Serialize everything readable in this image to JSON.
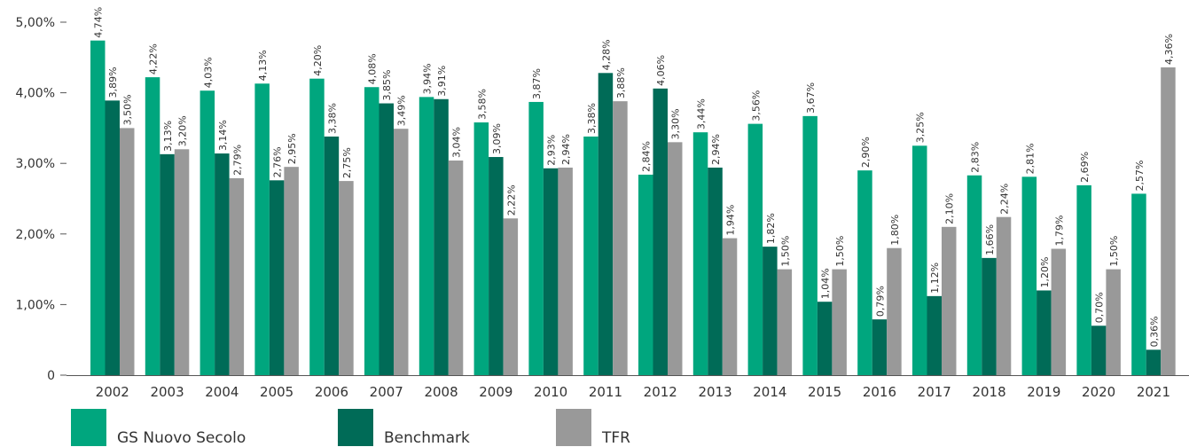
{
  "chart_data": {
    "type": "bar",
    "categories": [
      "2002",
      "2003",
      "2004",
      "2005",
      "2006",
      "2007",
      "2008",
      "2009",
      "2010",
      "2011",
      "2012",
      "2013",
      "2014",
      "2015",
      "2016",
      "2017",
      "2018",
      "2019",
      "2020",
      "2021"
    ],
    "series": [
      {
        "name": "GS Nuovo Secolo",
        "color": "#00A67E",
        "values": [
          4.74,
          4.22,
          4.03,
          4.13,
          4.2,
          4.08,
          3.94,
          3.58,
          3.87,
          3.38,
          2.84,
          3.44,
          3.56,
          3.67,
          2.9,
          3.25,
          2.83,
          2.81,
          2.69,
          2.57
        ]
      },
      {
        "name": "Benchmark",
        "color": "#006B57",
        "values": [
          3.89,
          3.13,
          3.14,
          2.76,
          3.38,
          3.85,
          3.91,
          3.09,
          2.93,
          4.28,
          4.06,
          2.94,
          1.82,
          1.04,
          0.79,
          1.12,
          1.66,
          1.2,
          0.7,
          0.36
        ]
      },
      {
        "name": "TFR",
        "color": "#999999",
        "values": [
          3.5,
          3.2,
          2.79,
          2.95,
          2.75,
          3.49,
          3.04,
          2.22,
          2.94,
          3.88,
          3.3,
          1.94,
          1.5,
          1.5,
          1.8,
          2.1,
          2.24,
          1.79,
          1.5,
          4.36
        ]
      }
    ],
    "data_labels": [
      [
        "4,74%",
        "4,22%",
        "4,03%",
        "4,13%",
        "4,20%",
        "4,08%",
        "3,94%",
        "3,58%",
        "3,87%",
        "3,38%",
        "2,84%",
        "3,44%",
        "3,56%",
        "3,67%",
        "2,90%",
        "3,25%",
        "2,83%",
        "2,81%",
        "2,69%",
        "2,57%"
      ],
      [
        "3,89%",
        "3,13%",
        "3,14%",
        "2,76%",
        "3,38%",
        "3,85%",
        "3,91%",
        "3,09%",
        "2,93%",
        "4,28%",
        "4,06%",
        "2,94%",
        "1,82%",
        "1,04%",
        "0,79%",
        "1,12%",
        "1,66%",
        "1,20%",
        "0,70%",
        "0,36%"
      ],
      [
        "3,50%",
        "3,20%",
        "2,79%",
        "2,95%",
        "2,75%",
        "3,49%",
        "3,04%",
        "2,22%",
        "2,94%",
        "3,88%",
        "3,30%",
        "1,94%",
        "1,50%",
        "1,50%",
        "1,80%",
        "2,10%",
        "2,24%",
        "1,79%",
        "1,50%",
        "4,36%"
      ]
    ],
    "y_ticks": [
      {
        "value": 0,
        "label": "0"
      },
      {
        "value": 1,
        "label": "1,00%"
      },
      {
        "value": 2,
        "label": "2,00%"
      },
      {
        "value": 3,
        "label": "3,00%"
      },
      {
        "value": 4,
        "label": "4,00%"
      },
      {
        "value": 5,
        "label": "5,00%"
      }
    ],
    "ylim": [
      0,
      5
    ],
    "title": "",
    "xlabel": "",
    "ylabel": "",
    "grid": false,
    "legend_position": "bottom"
  },
  "legend": {
    "items": [
      {
        "label": "GS Nuovo Secolo",
        "color": "#00A67E"
      },
      {
        "label": "Benchmark",
        "color": "#006B57"
      },
      {
        "label": "TFR",
        "color": "#999999"
      }
    ]
  }
}
